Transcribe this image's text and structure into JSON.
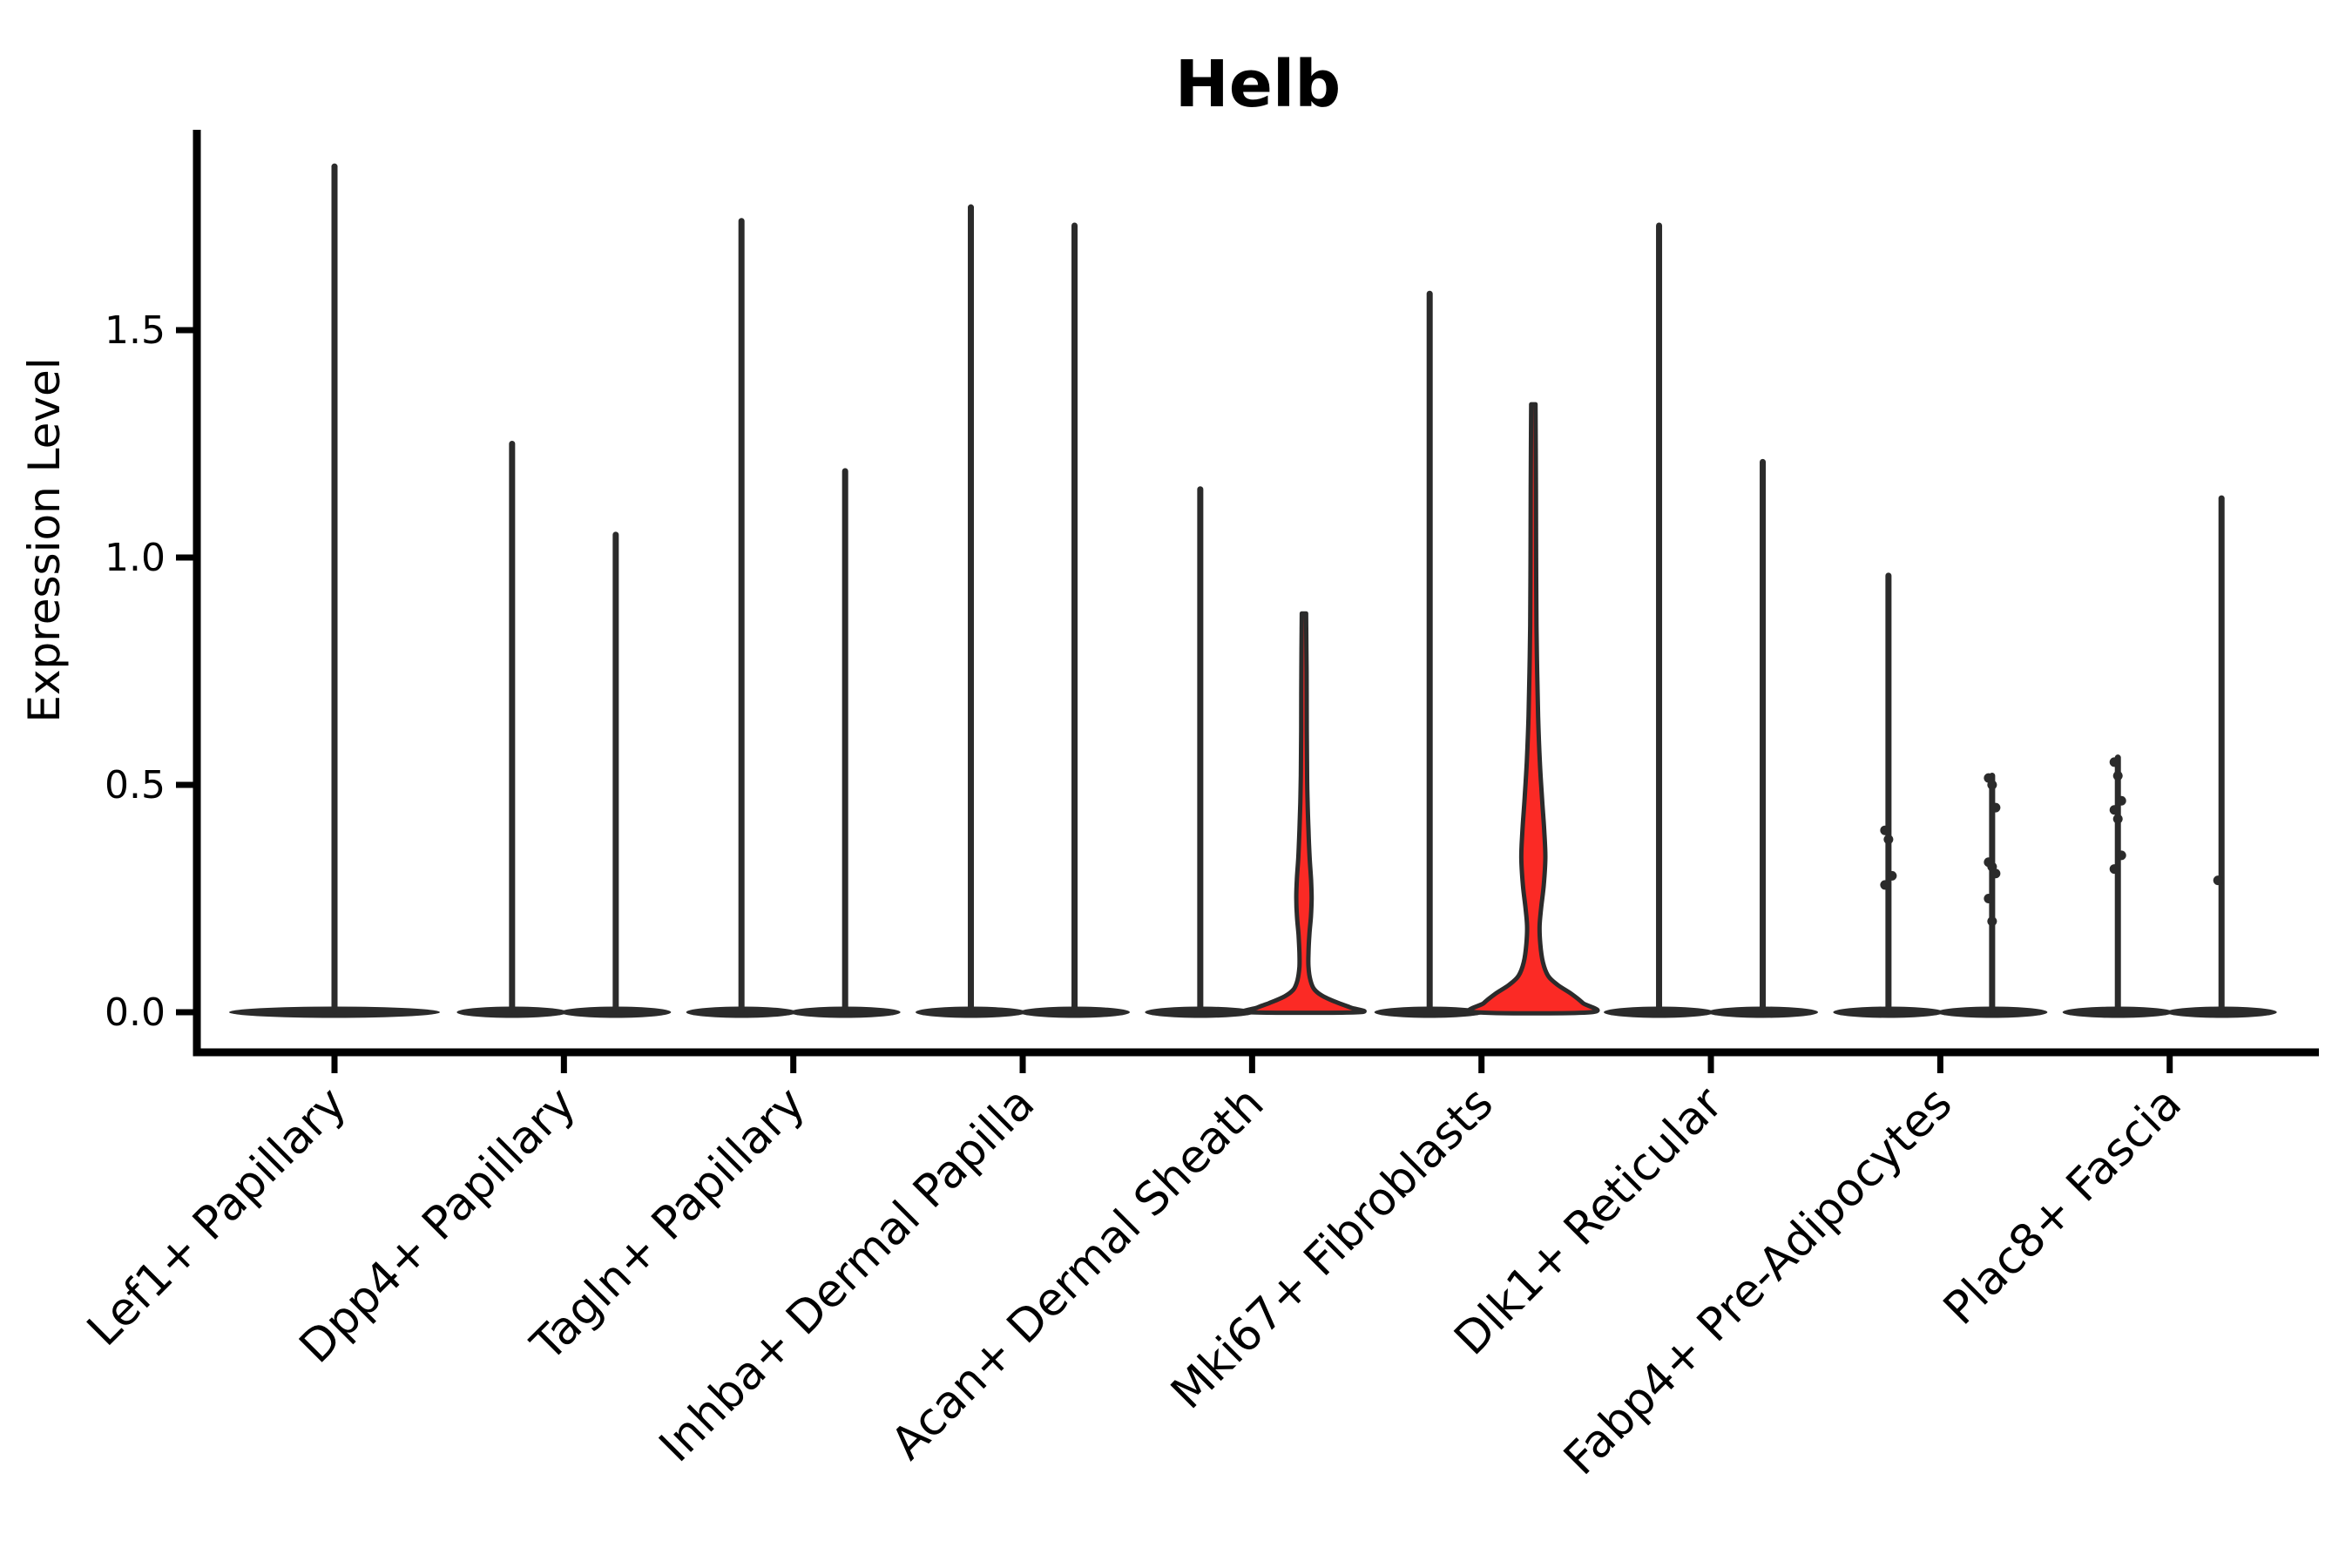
{
  "chart_data": {
    "type": "violin",
    "title": "Helb",
    "xlabel": "",
    "ylabel": "Expression Level",
    "ytick_labels": [
      "0.0",
      "0.5",
      "1.0",
      "1.5"
    ],
    "ytick_values": [
      0.0,
      0.5,
      1.0,
      1.5
    ],
    "ylim": [
      -0.09,
      1.94
    ],
    "grid": false,
    "legend": "none",
    "colors": {
      "outline": "#2b2b2b",
      "highlight_fill": "#fb2a25",
      "background": "#ffffff",
      "text": "#000000"
    },
    "categories": [
      "Lef1+ Papillary",
      "Dpp4+ Papillary",
      "Tagln+ Papillary",
      "Inhba+ Dermal Papilla",
      "Acan+ Dermal Sheath",
      "Mki67+ Fibroblasts",
      "Dlk1+ Reticular",
      "Fabp4+ Pre-Adipocytes",
      "Plac8+ Fascia"
    ],
    "groups": [
      {
        "category": "Lef1+ Papillary",
        "violins": [
          {
            "slot": "center",
            "kind": "spike",
            "max_expression": 1.86,
            "base_halfwidth": 121,
            "dots": []
          }
        ]
      },
      {
        "category": "Dpp4+ Papillary",
        "violins": [
          {
            "slot": "left",
            "kind": "spike",
            "max_expression": 1.25,
            "base_halfwidth": 63.5,
            "dots": []
          },
          {
            "slot": "right",
            "kind": "spike",
            "max_expression": 1.05,
            "base_halfwidth": 63.5,
            "dots": []
          }
        ]
      },
      {
        "category": "Tagln+ Papillary",
        "violins": [
          {
            "slot": "left",
            "kind": "spike",
            "max_expression": 1.74,
            "base_halfwidth": 63.5,
            "dots": []
          },
          {
            "slot": "right",
            "kind": "spike",
            "max_expression": 1.19,
            "base_halfwidth": 63.5,
            "dots": []
          }
        ]
      },
      {
        "category": "Inhba+ Dermal Papilla",
        "violins": [
          {
            "slot": "left",
            "kind": "spike",
            "max_expression": 1.77,
            "base_halfwidth": 63.5,
            "dots": []
          },
          {
            "slot": "right",
            "kind": "spike",
            "max_expression": 1.73,
            "base_halfwidth": 63.5,
            "dots": []
          }
        ]
      },
      {
        "category": "Acan+ Dermal Sheath",
        "violins": [
          {
            "slot": "left",
            "kind": "spike",
            "max_expression": 1.15,
            "base_halfwidth": 63.5,
            "dots": []
          },
          {
            "slot": "right",
            "kind": "shaped",
            "max_expression": 0.88,
            "fill": "#fb2a25",
            "dots": [],
            "profile": [
              [
                0.877,
                2.5
              ],
              [
                0.75,
                3.0
              ],
              [
                0.62,
                3.2
              ],
              [
                0.52,
                3.6
              ],
              [
                0.46,
                4.2
              ],
              [
                0.4,
                5.2
              ],
              [
                0.34,
                6.5
              ],
              [
                0.29,
                8.2
              ],
              [
                0.25,
                8.8
              ],
              [
                0.21,
                8.0
              ],
              [
                0.17,
                6.2
              ],
              [
                0.13,
                5.2
              ],
              [
                0.1,
                5.2
              ],
              [
                0.07,
                7.5
              ],
              [
                0.05,
                12.0
              ],
              [
                0.035,
                22.0
              ],
              [
                0.02,
                40.0
              ],
              [
                0.01,
                54.0
              ],
              [
                0.0,
                62.0
              ]
            ]
          }
        ]
      },
      {
        "category": "Mki67+ Fibroblasts",
        "violins": [
          {
            "slot": "left",
            "kind": "spike",
            "max_expression": 1.58,
            "base_halfwidth": 63.5,
            "dots": []
          },
          {
            "slot": "right",
            "kind": "shaped",
            "max_expression": 1.34,
            "fill": "#fb2a25",
            "dots": [],
            "profile": [
              [
                1.337,
                2.5
              ],
              [
                1.15,
                3.0
              ],
              [
                1.0,
                3.2
              ],
              [
                0.85,
                3.6
              ],
              [
                0.75,
                4.4
              ],
              [
                0.65,
                5.5
              ],
              [
                0.55,
                7.5
              ],
              [
                0.47,
                10.0
              ],
              [
                0.4,
                12.5
              ],
              [
                0.34,
                13.8
              ],
              [
                0.28,
                12.0
              ],
              [
                0.23,
                9.0
              ],
              [
                0.19,
                7.2
              ],
              [
                0.15,
                8.0
              ],
              [
                0.11,
                11.0
              ],
              [
                0.08,
                17.0
              ],
              [
                0.06,
                28.0
              ],
              [
                0.04,
                44.0
              ],
              [
                0.02,
                57.0
              ],
              [
                0.0,
                66.0
              ]
            ]
          }
        ]
      },
      {
        "category": "Dlk1+ Reticular",
        "violins": [
          {
            "slot": "left",
            "kind": "spike",
            "max_expression": 1.73,
            "base_halfwidth": 63.5,
            "dots": []
          },
          {
            "slot": "right",
            "kind": "spike",
            "max_expression": 1.21,
            "base_halfwidth": 63.5,
            "dots": []
          }
        ]
      },
      {
        "category": "Fabp4+ Pre-Adipocytes",
        "violins": [
          {
            "slot": "left",
            "kind": "spike",
            "max_expression": 0.96,
            "base_halfwidth": 63.5,
            "dots": [
              0.4,
              0.38,
              0.3,
              0.28
            ]
          },
          {
            "slot": "right",
            "kind": "spike",
            "max_expression": 0.52,
            "base_halfwidth": 63.5,
            "dots": [
              0.515,
              0.5,
              0.45,
              0.33,
              0.32,
              0.305,
              0.25,
              0.2
            ]
          }
        ]
      },
      {
        "category": "Plac8+ Fascia",
        "violins": [
          {
            "slot": "left",
            "kind": "spike",
            "max_expression": 0.56,
            "base_halfwidth": 63.5,
            "dots": [
              0.55,
              0.52,
              0.465,
              0.445,
              0.425,
              0.345,
              0.315
            ]
          },
          {
            "slot": "right",
            "kind": "spike",
            "max_expression": 1.13,
            "base_halfwidth": 63.5,
            "dots": [
              0.29
            ]
          }
        ]
      }
    ]
  }
}
